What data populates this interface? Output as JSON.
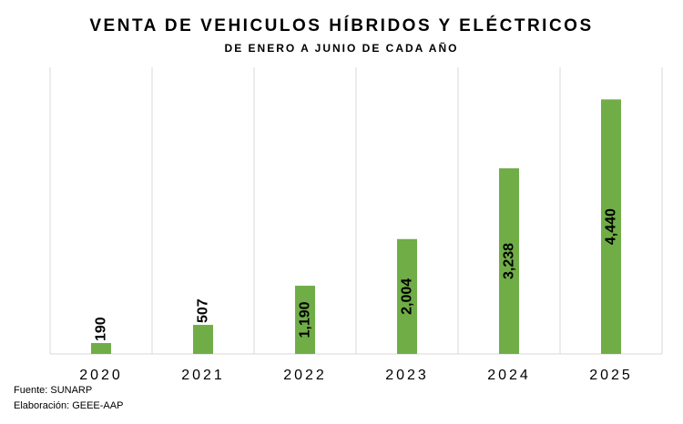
{
  "chart_data": {
    "type": "bar",
    "title": "VENTA DE VEHICULOS HÍBRIDOS Y ELÉCTRICOS",
    "subtitle": "DE ENERO A JUNIO DE CADA AÑO",
    "categories": [
      "2020",
      "2021",
      "2022",
      "2023",
      "2024",
      "2025"
    ],
    "values": [
      190,
      507,
      1190,
      2004,
      3238,
      4440
    ],
    "data_labels": [
      "190",
      "507",
      "1,190",
      "2,004",
      "3,238",
      "4,440"
    ],
    "xlabel": "",
    "ylabel": "",
    "ylim": [
      0,
      5000
    ],
    "grid": "vertical",
    "bar_color": "#70AD47"
  },
  "footer": {
    "source": "Fuente: SUNARP",
    "author": "Elaboración: GEEE-AAP"
  }
}
